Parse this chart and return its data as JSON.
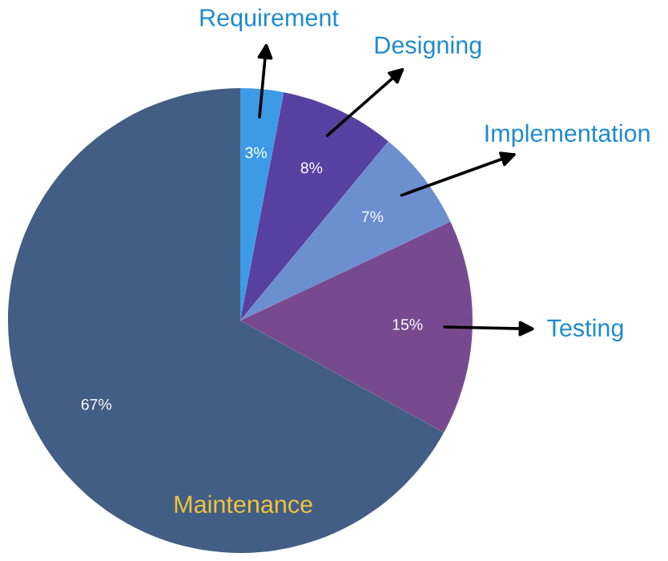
{
  "chart_data": {
    "type": "pie",
    "categories": [
      "Requirement",
      "Designing",
      "Implementation",
      "Testing",
      "Maintenance"
    ],
    "values": [
      3,
      8,
      7,
      15,
      67
    ],
    "colors": [
      "#3d9be6",
      "#5840a0",
      "#6b8fcf",
      "#774a90",
      "#435e84"
    ],
    "value_labels": [
      "3%",
      "8%",
      "7%",
      "15%",
      "67%"
    ],
    "legend": false
  }
}
